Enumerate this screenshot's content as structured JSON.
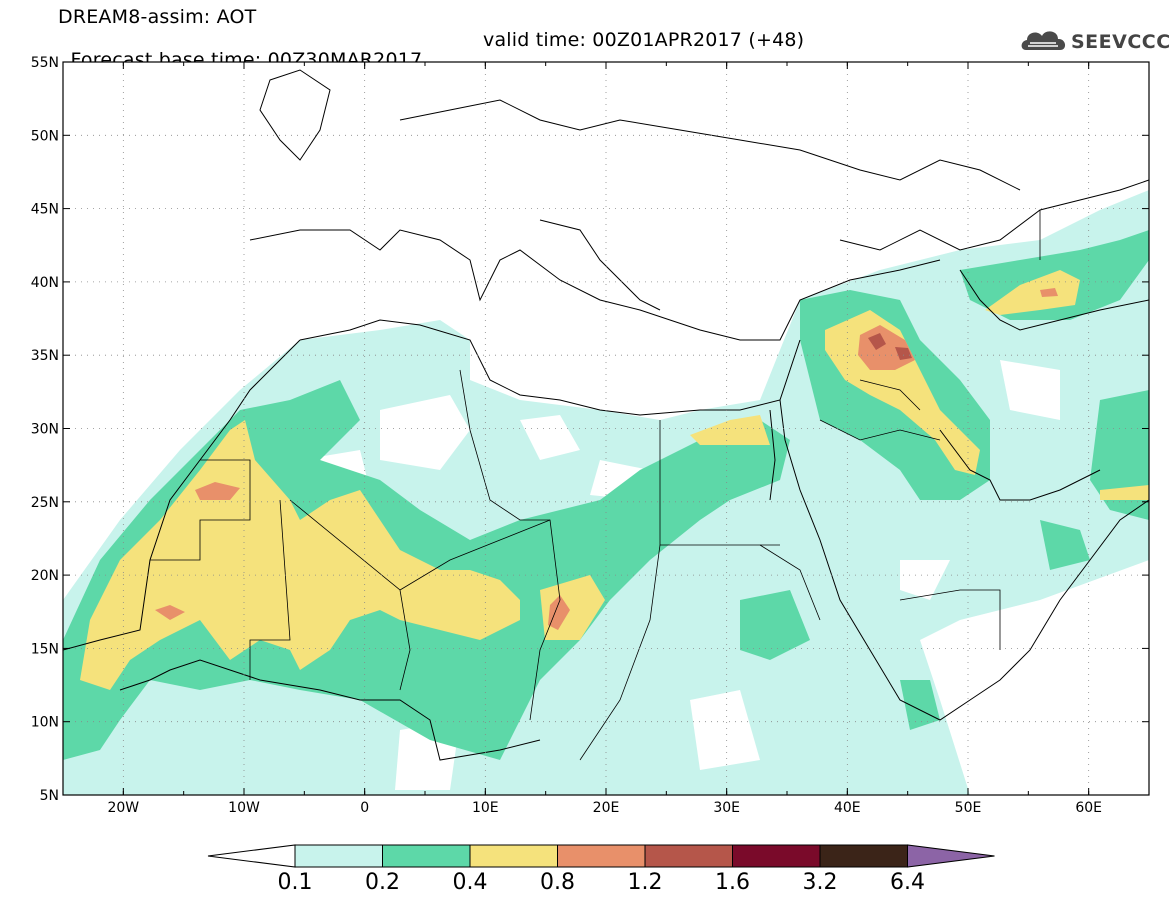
{
  "header": {
    "title": "DREAM8-assim: AOT",
    "base_time": "Forecast base time: 00Z30MAR2017",
    "valid_time": "valid time: 00Z01APR2017 (+48)"
  },
  "logo": {
    "text": "SEEVCCC",
    "icon": "cloud-icon"
  },
  "map": {
    "lon_range": [
      -25,
      65
    ],
    "lat_range": [
      5,
      55
    ],
    "lat_labels": [
      "55N",
      "50N",
      "45N",
      "40N",
      "35N",
      "30N",
      "25N",
      "20N",
      "15N",
      "10N",
      "5N"
    ],
    "lon_labels": [
      "20W",
      "10W",
      "0",
      "10E",
      "20E",
      "30E",
      "40E",
      "50E",
      "60E"
    ],
    "variable": "AOT"
  },
  "colorbar": {
    "levels": [
      "0.1",
      "0.2",
      "0.4",
      "0.8",
      "1.2",
      "1.6",
      "3.2",
      "6.4"
    ],
    "colors": [
      "#c8f3ec",
      "#5dd8a8",
      "#f5e27c",
      "#e8906a",
      "#b5564a",
      "#7a0a2a",
      "#3b2418",
      "#8c64a6"
    ]
  }
}
